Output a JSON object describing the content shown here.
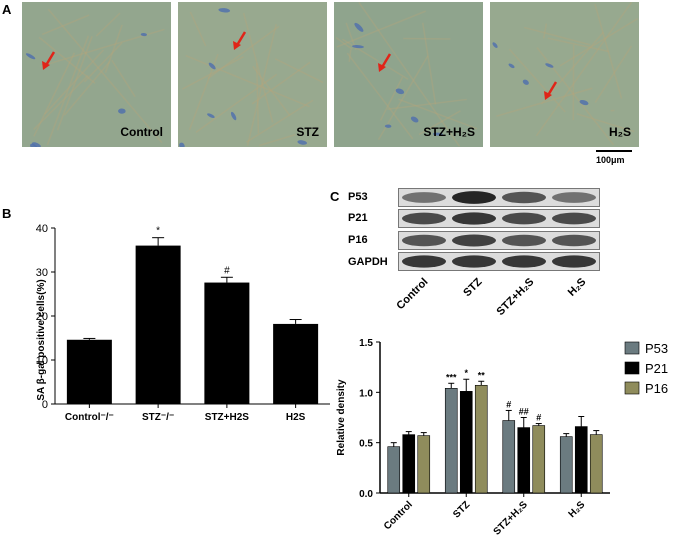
{
  "panel_a": {
    "letter": "A",
    "images": [
      {
        "label": "Control",
        "tint": "#93a68e"
      },
      {
        "label": "STZ",
        "tint": "#98a98f"
      },
      {
        "label": "STZ+H₂S",
        "tint": "#8fa48d"
      },
      {
        "label": "H₂S",
        "tint": "#97a98f"
      }
    ],
    "scale_bar": "100μm"
  },
  "panel_b": {
    "letter": "B",
    "ylabel_prefix": "SA ",
    "ylabel_beta": "β",
    "ylabel_suffix": "-gal positive cells(%)"
  },
  "panel_c": {
    "letter": "C",
    "blot_labels": [
      "P53",
      "P21",
      "P16",
      "GAPDH"
    ],
    "blot_groups": [
      "Control",
      "STZ",
      "STZ+H₂S",
      "H₂S"
    ]
  },
  "chart_data": [
    {
      "type": "bar",
      "categories": [
        "Control⁻/⁻",
        "STZ⁻/⁻",
        "STZ+H2S",
        "H2S"
      ],
      "values": [
        14.6,
        36.0,
        27.6,
        18.2
      ],
      "errors": [
        0.3,
        1.8,
        1.2,
        1.0
      ],
      "annotations": [
        "",
        "*",
        "#",
        ""
      ],
      "ylim": [
        0,
        40
      ],
      "yticks": [
        0,
        10,
        20,
        30,
        40
      ],
      "color": "#000000"
    },
    {
      "type": "bar",
      "categories": [
        "Control",
        "STZ",
        "STZ+H₂S",
        "H₂S"
      ],
      "series": [
        {
          "name": "P53",
          "values": [
            0.46,
            1.04,
            0.72,
            0.56
          ],
          "errors": [
            0.04,
            0.05,
            0.1,
            0.03
          ],
          "annotations": [
            "",
            "***",
            "#",
            ""
          ],
          "color": "#6b7b80"
        },
        {
          "name": "P21",
          "values": [
            0.58,
            1.01,
            0.65,
            0.66
          ],
          "errors": [
            0.03,
            0.12,
            0.1,
            0.1
          ],
          "annotations": [
            "",
            "*",
            "##",
            ""
          ],
          "color": "#000000"
        },
        {
          "name": "P16",
          "values": [
            0.57,
            1.07,
            0.67,
            0.58
          ],
          "errors": [
            0.03,
            0.04,
            0.02,
            0.04
          ],
          "annotations": [
            "",
            "**",
            "#",
            ""
          ],
          "color": "#8f8c5c"
        }
      ],
      "ylabel": "Relative density",
      "ylim": [
        0.0,
        1.5
      ],
      "yticks": [
        "0.0",
        "0.5",
        "1.0",
        "1.5"
      ],
      "legend": "right"
    }
  ]
}
